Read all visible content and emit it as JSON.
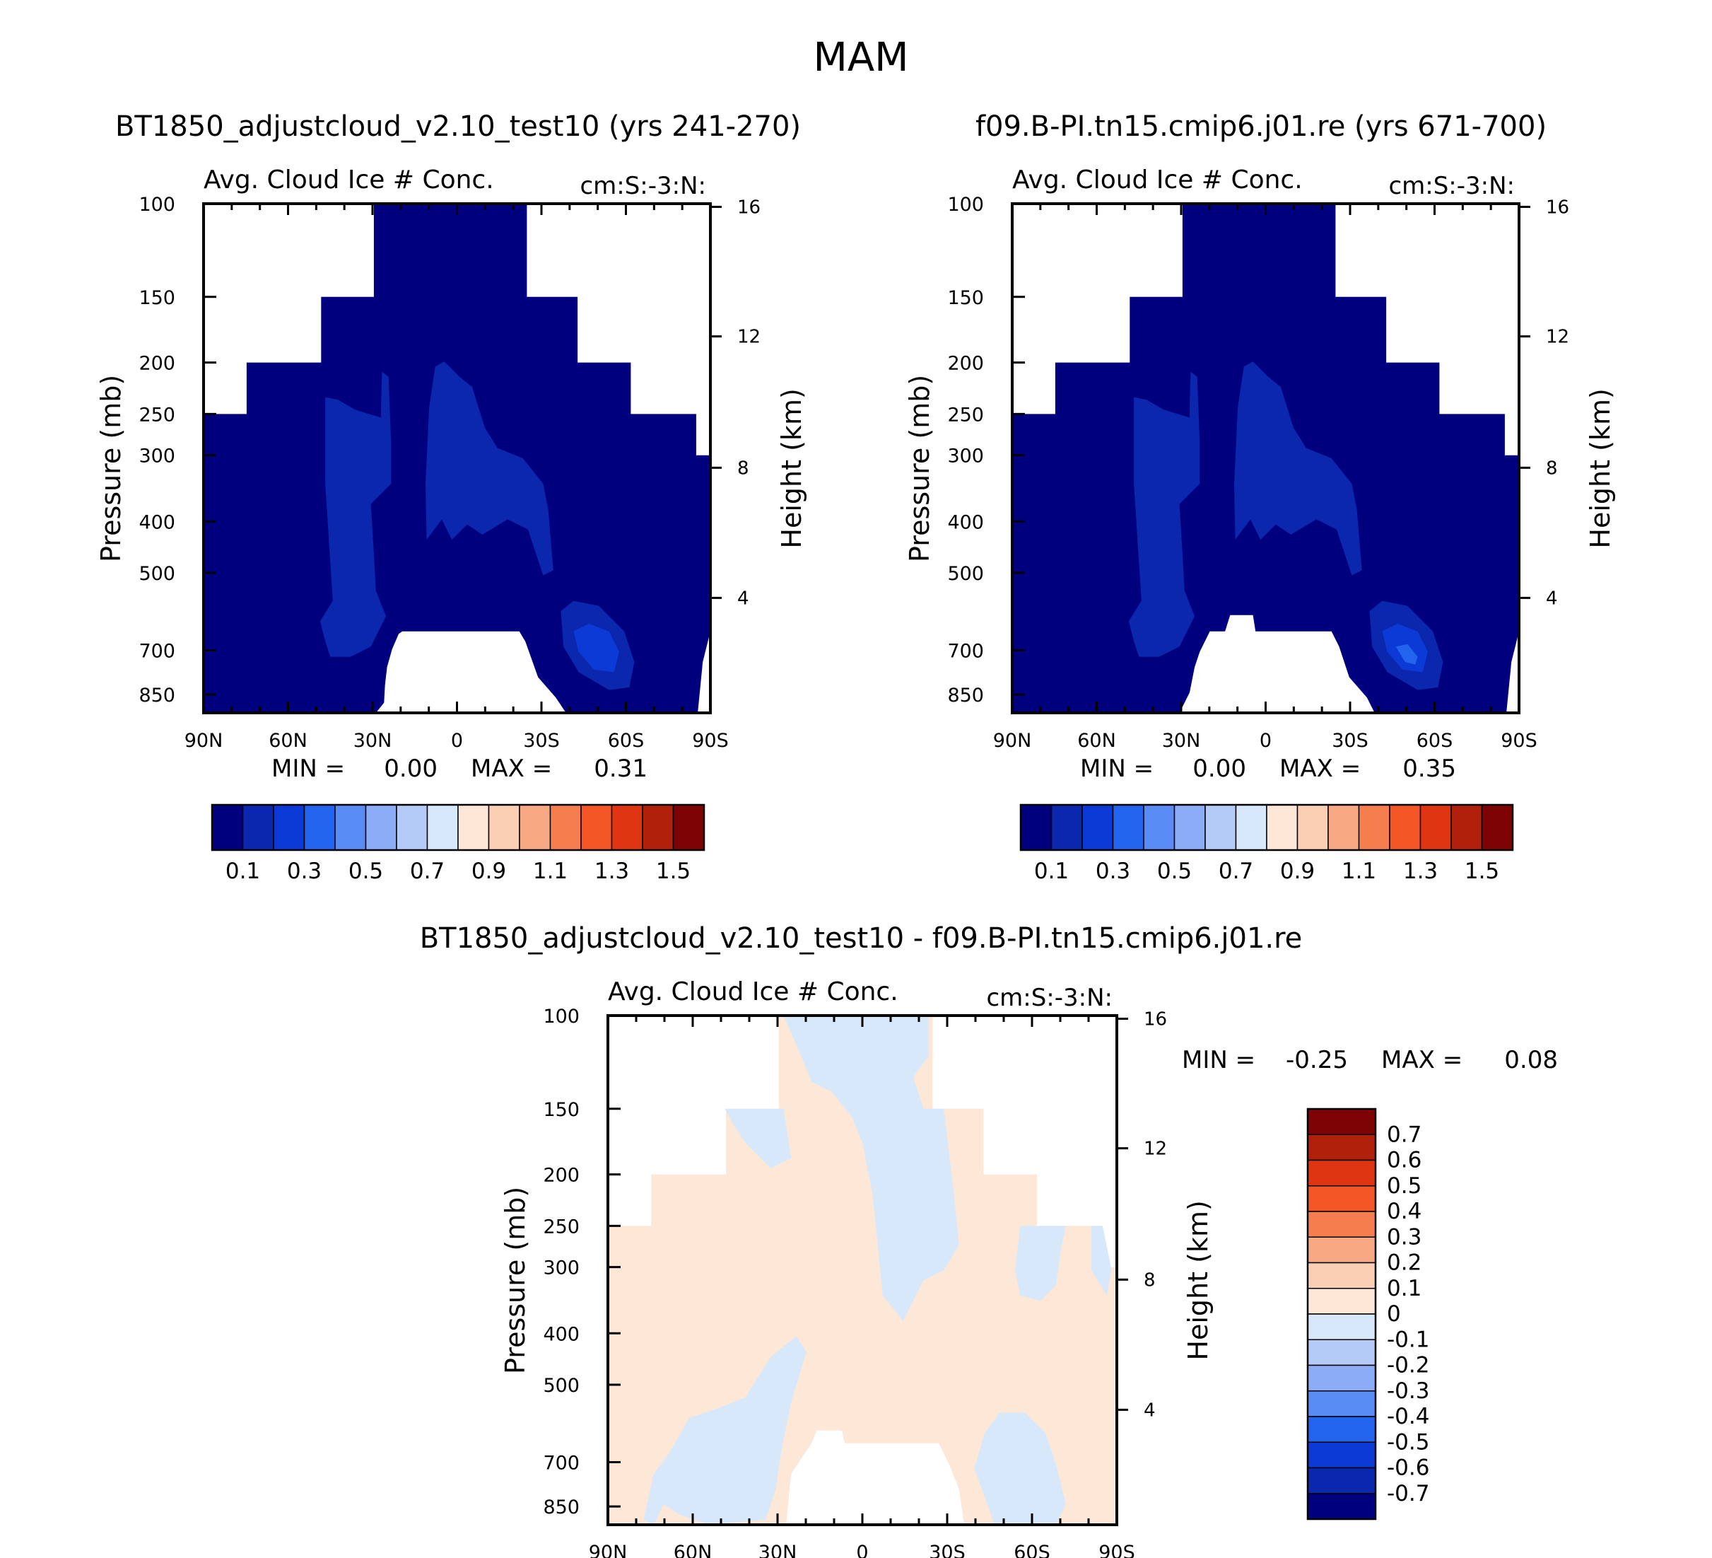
{
  "page_title": "MAM",
  "colors": {
    "fill_cold": "#00007f",
    "fill_mid": "#0a27ad",
    "fill_core": "#0c3ad6",
    "fill_hot": "#2364ee",
    "diff_pos": "#fde7d6",
    "diff_neg": "#d8e8fb",
    "frame": "#000000",
    "background": "#ffffff"
  },
  "chart_data": [
    {
      "id": "panel-a",
      "type": "heatmap",
      "title": "BT1850_adjustcloud_v2.10_test10 (yrs 241-270)",
      "subtitle_left": "Avg. Cloud Ice # Conc.",
      "subtitle_right": "cm:S:-3:N:",
      "xlabel": "",
      "ylabel": "Pressure (mb)",
      "y2label": "Height (km)",
      "x_ticks": [
        "90N",
        "60N",
        "30N",
        "0",
        "30S",
        "60S",
        "90S"
      ],
      "y_ticks": [
        "100",
        "150",
        "200",
        "250",
        "300",
        "400",
        "500",
        "700",
        "850"
      ],
      "y_tick_values": [
        100,
        150,
        200,
        250,
        300,
        400,
        500,
        700,
        850
      ],
      "y2_ticks": [
        "16",
        "12",
        "8",
        "4"
      ],
      "y2_tick_values": [
        16,
        12,
        8,
        4
      ],
      "xlim": [
        90,
        -90
      ],
      "ylim": [
        100,
        1000
      ],
      "stats": {
        "min_label": "MIN =",
        "min_value": "0.00",
        "max_label": "MAX =",
        "max_value": "0.31"
      },
      "contour_levels": [
        0,
        0.1,
        0.2,
        0.3,
        0.4,
        0.5,
        0.6,
        0.7,
        0.8,
        0.9,
        1.0,
        1.1,
        1.2,
        1.3,
        1.4,
        1.5,
        1.6
      ],
      "colorbar_labels": [
        "0.1",
        "0.3",
        "0.5",
        "0.7",
        "0.9",
        "1.1",
        "1.3",
        "1.5"
      ],
      "colorbar_colors": [
        "#00007f",
        "#0a27ad",
        "#0c3ad6",
        "#2364ee",
        "#5a8cf5",
        "#8cacf7",
        "#b4cbf8",
        "#d7e8fb",
        "#fde7d6",
        "#fbcfb4",
        "#f8a983",
        "#f67e4e",
        "#f45725",
        "#e03513",
        "#b0200b",
        "#7e0304"
      ]
    },
    {
      "id": "panel-b",
      "type": "heatmap",
      "title": "f09.B-PI.tn15.cmip6.j01.re (yrs 671-700)",
      "subtitle_left": "Avg. Cloud Ice # Conc.",
      "subtitle_right": "cm:S:-3:N:",
      "xlabel": "",
      "ylabel": "Pressure (mb)",
      "y2label": "Height (km)",
      "x_ticks": [
        "90N",
        "60N",
        "30N",
        "0",
        "30S",
        "60S",
        "90S"
      ],
      "y_ticks": [
        "100",
        "150",
        "200",
        "250",
        "300",
        "400",
        "500",
        "700",
        "850"
      ],
      "y_tick_values": [
        100,
        150,
        200,
        250,
        300,
        400,
        500,
        700,
        850
      ],
      "y2_ticks": [
        "16",
        "12",
        "8",
        "4"
      ],
      "y2_tick_values": [
        16,
        12,
        8,
        4
      ],
      "xlim": [
        90,
        -90
      ],
      "ylim": [
        100,
        1000
      ],
      "stats": {
        "min_label": "MIN =",
        "min_value": "0.00",
        "max_label": "MAX =",
        "max_value": "0.35"
      },
      "contour_levels": [
        0,
        0.1,
        0.2,
        0.3,
        0.4,
        0.5,
        0.6,
        0.7,
        0.8,
        0.9,
        1.0,
        1.1,
        1.2,
        1.3,
        1.4,
        1.5,
        1.6
      ],
      "colorbar_labels": [
        "0.1",
        "0.3",
        "0.5",
        "0.7",
        "0.9",
        "1.1",
        "1.3",
        "1.5"
      ],
      "colorbar_colors": [
        "#00007f",
        "#0a27ad",
        "#0c3ad6",
        "#2364ee",
        "#5a8cf5",
        "#8cacf7",
        "#b4cbf8",
        "#d7e8fb",
        "#fde7d6",
        "#fbcfb4",
        "#f8a983",
        "#f67e4e",
        "#f45725",
        "#e03513",
        "#b0200b",
        "#7e0304"
      ]
    },
    {
      "id": "panel-diff",
      "type": "heatmap",
      "title": "BT1850_adjustcloud_v2.10_test10 - f09.B-PI.tn15.cmip6.j01.re",
      "subtitle_left": "Avg. Cloud Ice # Conc.",
      "subtitle_right": "cm:S:-3:N:",
      "xlabel": "",
      "ylabel": "Pressure (mb)",
      "y2label": "Height (km)",
      "x_ticks": [
        "90N",
        "60N",
        "30N",
        "0",
        "30S",
        "60S",
        "90S"
      ],
      "y_ticks": [
        "100",
        "150",
        "200",
        "250",
        "300",
        "400",
        "500",
        "700",
        "850"
      ],
      "y_tick_values": [
        100,
        150,
        200,
        250,
        300,
        400,
        500,
        700,
        850
      ],
      "y2_ticks": [
        "16",
        "12",
        "8",
        "4"
      ],
      "y2_tick_values": [
        16,
        12,
        8,
        4
      ],
      "xlim": [
        90,
        -90
      ],
      "ylim": [
        100,
        1000
      ],
      "stats": {
        "min_label": "MIN =",
        "min_value": "-0.25",
        "max_label": "MAX =",
        "max_value": "0.08"
      },
      "contour_levels": [
        -0.8,
        -0.7,
        -0.6,
        -0.5,
        -0.4,
        -0.3,
        -0.2,
        -0.1,
        0,
        0.1,
        0.2,
        0.3,
        0.4,
        0.5,
        0.6,
        0.7,
        0.8
      ],
      "colorbar_labels": [
        "0.7",
        "0.6",
        "0.5",
        "0.4",
        "0.3",
        "0.2",
        "0.1",
        "0",
        "-0.1",
        "-0.2",
        "-0.3",
        "-0.4",
        "-0.5",
        "-0.6",
        "-0.7"
      ],
      "colorbar_colors": [
        "#7e0304",
        "#b0200b",
        "#e03513",
        "#f45725",
        "#f67e4e",
        "#f8a983",
        "#fbcfb4",
        "#fde7d6",
        "#d7e8fb",
        "#b4cbf8",
        "#8cacf7",
        "#5a8cf5",
        "#2364ee",
        "#0c3ad6",
        "#0a27ad",
        "#00007f"
      ]
    }
  ]
}
